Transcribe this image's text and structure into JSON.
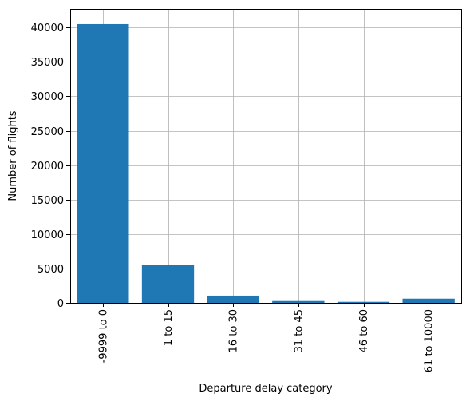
{
  "chart_data": {
    "type": "bar",
    "title": "",
    "xlabel": "Departure delay category",
    "ylabel": "Number of flights",
    "categories": [
      "-9999 to 0",
      "1 to 15",
      "16 to 30",
      "31 to 45",
      "46 to 60",
      "61 to 10000"
    ],
    "values": [
      40500,
      5550,
      1050,
      380,
      150,
      610
    ],
    "ylim": [
      0,
      42700
    ],
    "yticks": [
      0,
      5000,
      10000,
      15000,
      20000,
      25000,
      30000,
      35000,
      40000
    ],
    "ytick_labels": [
      "0",
      "5000",
      "10000",
      "15000",
      "20000",
      "25000",
      "30000",
      "35000",
      "40000"
    ],
    "grid": true,
    "bar_color": "#1f77b4",
    "grid_color": "#b0b0b0"
  }
}
